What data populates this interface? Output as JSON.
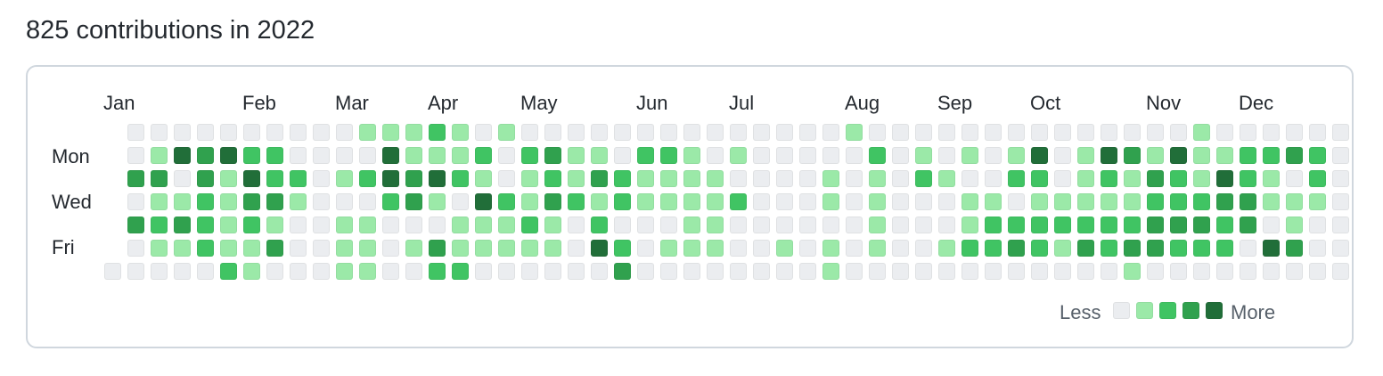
{
  "title": "825 contributions in 2022",
  "months": [
    "Jan",
    "Feb",
    "Mar",
    "Apr",
    "May",
    "Jun",
    "Jul",
    "Aug",
    "Sep",
    "Oct",
    "Nov",
    "Dec"
  ],
  "day_labels": [
    "Mon",
    "Wed",
    "Fri"
  ],
  "legend": {
    "less": "Less",
    "more": "More"
  },
  "colors": [
    "#ebedf0",
    "#9be9a8",
    "#40c463",
    "#30a14e",
    "#216e39"
  ],
  "year": 2022,
  "first_week_start_row": 6,
  "contribution_levels": {
    "legend": "0 = none, 1..4 = increasing intensity; one row per weekday Sun..Sat, one column per week",
    "Sun": [
      0,
      0,
      0,
      0,
      0,
      0,
      0,
      0,
      0,
      0,
      1,
      1,
      1,
      2,
      1,
      0,
      1,
      0,
      0,
      0,
      0,
      0,
      0,
      0,
      0,
      0,
      0,
      0,
      0,
      0,
      0,
      1,
      0,
      0,
      0,
      0,
      0,
      0,
      0,
      0,
      0,
      0,
      0,
      0,
      0,
      0,
      1,
      0,
      0,
      0,
      0,
      0,
      0
    ],
    "Mon": [
      0,
      1,
      4,
      3,
      4,
      2,
      2,
      0,
      0,
      0,
      0,
      4,
      1,
      1,
      1,
      2,
      0,
      2,
      3,
      1,
      1,
      0,
      2,
      2,
      1,
      0,
      1,
      0,
      0,
      0,
      0,
      0,
      2,
      0,
      1,
      0,
      1,
      0,
      1,
      4,
      0,
      1,
      4,
      3,
      1,
      4,
      1,
      1,
      2,
      2,
      3,
      2,
      0
    ],
    "Tue": [
      3,
      3,
      0,
      3,
      1,
      4,
      2,
      2,
      0,
      1,
      2,
      4,
      3,
      4,
      2,
      1,
      0,
      1,
      2,
      1,
      3,
      2,
      1,
      1,
      1,
      1,
      0,
      0,
      0,
      0,
      1,
      0,
      1,
      0,
      2,
      1,
      0,
      0,
      2,
      2,
      0,
      1,
      2,
      1,
      3,
      2,
      1,
      4,
      2,
      1,
      0,
      2,
      0
    ],
    "Wed": [
      0,
      1,
      1,
      2,
      1,
      3,
      3,
      1,
      0,
      0,
      0,
      2,
      3,
      1,
      0,
      4,
      2,
      1,
      3,
      2,
      1,
      2,
      1,
      1,
      1,
      1,
      2,
      0,
      0,
      0,
      1,
      0,
      1,
      0,
      0,
      0,
      1,
      1,
      0,
      1,
      1,
      1,
      1,
      1,
      2,
      2,
      2,
      3,
      3,
      1,
      1,
      1,
      0
    ],
    "Thu": [
      3,
      2,
      3,
      2,
      1,
      2,
      1,
      0,
      0,
      1,
      1,
      0,
      0,
      0,
      1,
      1,
      1,
      2,
      1,
      0,
      2,
      0,
      0,
      0,
      1,
      1,
      0,
      0,
      0,
      0,
      0,
      0,
      1,
      0,
      0,
      0,
      1,
      2,
      2,
      2,
      2,
      2,
      2,
      2,
      3,
      3,
      3,
      2,
      3,
      0,
      1,
      0,
      0
    ],
    "Fri": [
      0,
      1,
      1,
      2,
      1,
      1,
      3,
      0,
      0,
      1,
      1,
      0,
      1,
      3,
      1,
      1,
      1,
      1,
      1,
      0,
      4,
      2,
      0,
      1,
      1,
      1,
      0,
      0,
      1,
      0,
      1,
      0,
      1,
      0,
      0,
      1,
      2,
      2,
      3,
      2,
      1,
      3,
      2,
      3,
      3,
      2,
      2,
      2,
      0,
      4,
      3,
      0,
      0
    ],
    "Sat": [
      0,
      0,
      0,
      0,
      2,
      1,
      0,
      0,
      0,
      1,
      1,
      0,
      0,
      2,
      2,
      0,
      0,
      0,
      0,
      0,
      0,
      3,
      0,
      0,
      0,
      0,
      0,
      0,
      0,
      0,
      1,
      0,
      0,
      0,
      0,
      0,
      0,
      0,
      0,
      0,
      0,
      0,
      0,
      1,
      0,
      0,
      0,
      0,
      0,
      0,
      0,
      0,
      0
    ]
  }
}
